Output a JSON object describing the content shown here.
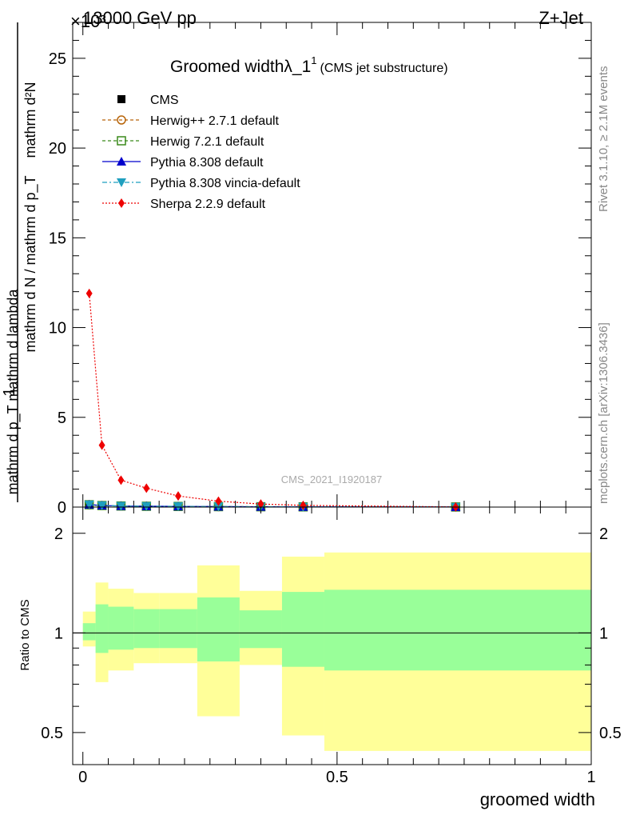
{
  "header": {
    "left": "13000 GeV pp",
    "right": "Z+Jet",
    "exponent": "×10³"
  },
  "side_labels": {
    "rivet": "Rivet 3.1.10, ≥ 2.1M events",
    "mcplots": "mcplots.cern.ch [arXiv:1306.3436]"
  },
  "chart_data": [
    {
      "type": "line",
      "title": "Groomed widthλ_1",
      "title_superscript": "1",
      "subtitle": "(CMS jet substructure)",
      "watermark": "CMS_2021_I1920187",
      "ylabel": {
        "numerator": "1",
        "denominator": "mathrm d N / mathrm d p_T",
        "second_part": "mathrm d²N",
        "second_denominator": "mathrm d p_T mathrm d lambda"
      },
      "xlim": [
        -0.02,
        1.0
      ],
      "ylim": [
        0,
        27000
      ],
      "y_ticks": [
        0,
        5,
        10,
        15,
        20,
        25
      ],
      "x": [
        0.0125,
        0.0375,
        0.075,
        0.125,
        0.1875,
        0.2667,
        0.35,
        0.4333,
        0.7333
      ],
      "series": [
        {
          "name": "CMS",
          "marker": "square",
          "color": "#000000",
          "values": [
            150,
            90,
            60,
            50,
            40,
            30,
            20,
            15,
            8
          ]
        },
        {
          "name": "Herwig++ 2.7.1 default",
          "marker": "open-circle",
          "color": "#b8650a",
          "dash": "4,3",
          "values": [
            120,
            80,
            60,
            45,
            35,
            25,
            18,
            12,
            6
          ]
        },
        {
          "name": "Herwig 7.2.1 default",
          "marker": "open-square",
          "color": "#3a8a1a",
          "dash": "4,3",
          "values": [
            130,
            85,
            60,
            45,
            35,
            25,
            18,
            12,
            6
          ]
        },
        {
          "name": "Pythia 8.308 default",
          "marker": "triangle-up",
          "color": "#0000cc",
          "dash": "",
          "values": [
            140,
            88,
            60,
            48,
            38,
            28,
            19,
            13,
            7
          ]
        },
        {
          "name": "Pythia 8.308 vincia-default",
          "marker": "triangle-down",
          "color": "#1f9fbf",
          "dash": "6,3,2,3",
          "values": [
            140,
            88,
            60,
            48,
            38,
            28,
            19,
            13,
            7
          ]
        },
        {
          "name": "Sherpa 2.2.9 default",
          "marker": "diamond",
          "color": "#ee0000",
          "dash": "2,2",
          "values": [
            11900,
            3450,
            1500,
            1050,
            620,
            330,
            170,
            95,
            8
          ]
        }
      ]
    },
    {
      "type": "area",
      "ylabel": "Ratio to CMS",
      "xlabel": "groomed width",
      "xlim": [
        -0.02,
        1.0
      ],
      "x_ticks": [
        "0",
        "0.5",
        "1"
      ],
      "y_ticks": [
        "0.5",
        "1",
        "2"
      ],
      "ylim": [
        0.4,
        2.4
      ],
      "log_scale_y": true,
      "bins": [
        {
          "lo": 0.0,
          "hi": 0.025,
          "inner": [
            0.95,
            1.07
          ],
          "outer": [
            0.91,
            1.16
          ]
        },
        {
          "lo": 0.025,
          "hi": 0.05,
          "inner": [
            0.87,
            1.22
          ],
          "outer": [
            0.71,
            1.42
          ]
        },
        {
          "lo": 0.05,
          "hi": 0.1,
          "inner": [
            0.89,
            1.2
          ],
          "outer": [
            0.77,
            1.36
          ]
        },
        {
          "lo": 0.1,
          "hi": 0.15,
          "inner": [
            0.9,
            1.18
          ],
          "outer": [
            0.81,
            1.32
          ]
        },
        {
          "lo": 0.15,
          "hi": 0.225,
          "inner": [
            0.9,
            1.18
          ],
          "outer": [
            0.81,
            1.32
          ]
        },
        {
          "lo": 0.225,
          "hi": 0.3083,
          "inner": [
            0.82,
            1.28
          ],
          "outer": [
            0.56,
            1.6
          ]
        },
        {
          "lo": 0.3083,
          "hi": 0.3917,
          "inner": [
            0.9,
            1.17
          ],
          "outer": [
            0.8,
            1.34
          ]
        },
        {
          "lo": 0.3917,
          "hi": 0.475,
          "inner": [
            0.79,
            1.33
          ],
          "outer": [
            0.49,
            1.7
          ]
        },
        {
          "lo": 0.475,
          "hi": 1.0,
          "inner": [
            0.77,
            1.35
          ],
          "outer": [
            0.44,
            1.75
          ]
        }
      ],
      "reference_line": 1
    }
  ]
}
